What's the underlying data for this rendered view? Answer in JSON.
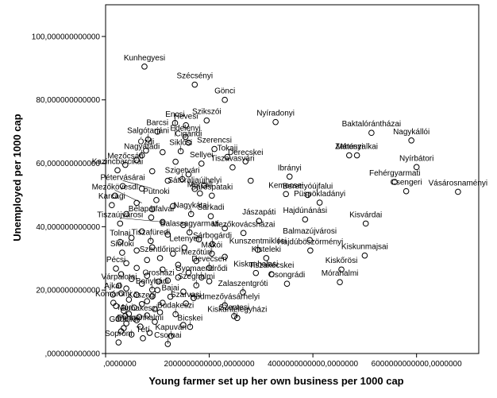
{
  "chart_data": {
    "type": "scatter",
    "xlabel": "Young farmer set up her own business per 1000 cap",
    "ylabel": "Unemployed per 1000 cap",
    "xlim": [
      0,
      7200000000000
    ],
    "ylim": [
      0,
      110000000000
    ],
    "x_ticks": [
      {
        "value": 0,
        "label": ",0000000"
      },
      {
        "value": 2000000000000,
        "label": "2000000000000,0000000"
      },
      {
        "value": 4000000000000,
        "label": "4000000000000,0000000"
      },
      {
        "value": 6000000000000,
        "label": "6000000000000,0000000"
      }
    ],
    "y_ticks": [
      {
        "value": 0,
        "label": ",000000000000"
      },
      {
        "value": 20000000000,
        "label": "20,000000000000"
      },
      {
        "value": 40000000000,
        "label": "40,000000000000"
      },
      {
        "value": 60000000000,
        "label": "60,000000000000"
      },
      {
        "value": 80000000000,
        "label": "80,000000000000"
      },
      {
        "value": 100000000000,
        "label": "100,000000000000"
      }
    ],
    "grid": false,
    "points": [
      {
        "label": "Kunhegyesi",
        "x": 750000000000,
        "y": 90500000000
      },
      {
        "label": "Szécsényi",
        "x": 1720000000000,
        "y": 84800000000
      },
      {
        "label": "Gönci",
        "x": 2300000000000,
        "y": 80000000000
      },
      {
        "label": "Salgótarjáni",
        "x": 820000000000,
        "y": 67500000000
      },
      {
        "label": "Hevesi",
        "x": 1550000000000,
        "y": 72000000000
      },
      {
        "label": "Encsi",
        "x": 1340000000000,
        "y": 72700000000
      },
      {
        "label": "Szikszói",
        "x": 1950000000000,
        "y": 73500000000
      },
      {
        "label": "Nyíradonyi",
        "x": 3280000000000,
        "y": 73000000000
      },
      {
        "label": "Baktalórántházai",
        "x": 5130000000000,
        "y": 69600000000
      },
      {
        "label": "Nagykállói",
        "x": 5900000000000,
        "y": 67200000000
      },
      {
        "label": "Barcsi",
        "x": 1000000000000,
        "y": 70000000000
      },
      {
        "label": "Edelényi",
        "x": 1540000000000,
        "y": 68300000000
      },
      {
        "label": "Ózdi",
        "x": 780000000000,
        "y": 64000000000
      },
      {
        "label": "Cigándi",
        "x": 1600000000000,
        "y": 66500000000
      },
      {
        "label": "Szerencsi",
        "x": 2100000000000,
        "y": 64500000000
      },
      {
        "label": "Nagyatádi",
        "x": 700000000000,
        "y": 62500000000
      },
      {
        "label": "Siklósi",
        "x": 1450000000000,
        "y": 63800000000
      },
      {
        "label": "Tokaji",
        "x": 2350000000000,
        "y": 62000000000
      },
      {
        "label": "Derecskei",
        "x": 2700000000000,
        "y": 60600000000
      },
      {
        "label": "Mátészalkai",
        "x": 4850000000000,
        "y": 62500000000
      },
      {
        "label": "Nyírbátori",
        "x": 6000000000000,
        "y": 58800000000
      },
      {
        "label": "Mezőcsáti",
        "x": 380000000000,
        "y": 59500000000
      },
      {
        "label": "Zahonyi",
        "x": 4700000000000,
        "y": 62500000000
      },
      {
        "label": "Kazincbarcikai",
        "x": 230000000000,
        "y": 57800000000
      },
      {
        "label": "Sellyei",
        "x": 1850000000000,
        "y": 59900000000
      },
      {
        "label": "Tiszavasvári",
        "x": 2450000000000,
        "y": 58700000000
      },
      {
        "label": "Szigetvári",
        "x": 1480000000000,
        "y": 55000000000
      },
      {
        "label": "Ibrányi",
        "x": 3550000000000,
        "y": 55800000000
      },
      {
        "label": "Fehérgyarmati",
        "x": 5580000000000,
        "y": 54100000000
      },
      {
        "label": "Vásárosnaményi",
        "x": 6800000000000,
        "y": 51000000000
      },
      {
        "label": "Pétervásárai",
        "x": 330000000000,
        "y": 52800000000
      },
      {
        "label": "Sátoraljaújhelyi",
        "x": 1720000000000,
        "y": 51900000000
      },
      {
        "label": "Sárospataki",
        "x": 2050000000000,
        "y": 49800000000
      },
      {
        "label": "Marcali",
        "x": 1820000000000,
        "y": 50500000000
      },
      {
        "label": "Kemecsei",
        "x": 3480000000000,
        "y": 50300000000
      },
      {
        "label": "Berettyóújfalui",
        "x": 3900000000000,
        "y": 50000000000
      },
      {
        "label": "Püspökladányi",
        "x": 4130000000000,
        "y": 47600000000
      },
      {
        "label": "Csengeri",
        "x": 5800000000000,
        "y": 51200000000
      },
      {
        "label": "Mezőkövesdi",
        "x": 180000000000,
        "y": 49800000000
      },
      {
        "label": "Putnoki",
        "x": 980000000000,
        "y": 48400000000
      },
      {
        "label": "Karcagi",
        "x": 120000000000,
        "y": 46800000000
      },
      {
        "label": "Nagykátai",
        "x": 1650000000000,
        "y": 44000000000
      },
      {
        "label": "Bélapátfalvai",
        "x": 880000000000,
        "y": 42900000000
      },
      {
        "label": "Sarkadi",
        "x": 2030000000000,
        "y": 43300000000
      },
      {
        "label": "Jászapáti",
        "x": 2960000000000,
        "y": 41800000000
      },
      {
        "label": "Hajdúnánási",
        "x": 3850000000000,
        "y": 42300000000
      },
      {
        "label": "Kisvárdai",
        "x": 5020000000000,
        "y": 41000000000
      },
      {
        "label": "Tiszaújvárosi",
        "x": 280000000000,
        "y": 41000000000
      },
      {
        "label": "Balassagyarmati",
        "x": 1620000000000,
        "y": 38200000000
      },
      {
        "label": "Mezőkovácsházai",
        "x": 2660000000000,
        "y": 38000000000
      },
      {
        "label": "Balmazújvárosi",
        "x": 3940000000000,
        "y": 35800000000
      },
      {
        "label": "Tiszafüredi",
        "x": 870000000000,
        "y": 35500000000
      },
      {
        "label": "Tolnai",
        "x": 280000000000,
        "y": 35200000000
      },
      {
        "label": "Sárbogárdi",
        "x": 2060000000000,
        "y": 34500000000
      },
      {
        "label": "Kunszentmiklósi",
        "x": 2940000000000,
        "y": 32700000000
      },
      {
        "label": "Hajdúböszörményi",
        "x": 3950000000000,
        "y": 32500000000
      },
      {
        "label": "Siófoki",
        "x": 320000000000,
        "y": 31800000000
      },
      {
        "label": "Letenyei",
        "x": 1520000000000,
        "y": 33400000000
      },
      {
        "label": "Makói",
        "x": 2050000000000,
        "y": 31500000000
      },
      {
        "label": "Kisteleki",
        "x": 3100000000000,
        "y": 30100000000
      },
      {
        "label": "Kiskunmajsai",
        "x": 5000000000000,
        "y": 30900000000
      },
      {
        "label": "Szentlőrinci",
        "x": 1050000000000,
        "y": 30100000000
      },
      {
        "label": "Mezőtúri",
        "x": 1750000000000,
        "y": 29200000000
      },
      {
        "label": "Pécsi",
        "x": 200000000000,
        "y": 26800000000
      },
      {
        "label": "Devecseri",
        "x": 2000000000000,
        "y": 27000000000
      },
      {
        "label": "Kiskőrösi",
        "x": 4550000000000,
        "y": 26500000000
      },
      {
        "label": "Kiskunhalasi",
        "x": 2900000000000,
        "y": 25400000000
      },
      {
        "label": "Tiszakécskei",
        "x": 3200000000000,
        "y": 25000000000
      },
      {
        "label": "Gyomaendrődi",
        "x": 1850000000000,
        "y": 24000000000
      },
      {
        "label": "Mórahalmi",
        "x": 4520000000000,
        "y": 22500000000
      },
      {
        "label": "Csongrádi",
        "x": 3500000000000,
        "y": 22000000000
      },
      {
        "label": "Orosházi",
        "x": 1020000000000,
        "y": 22700000000
      },
      {
        "label": "Várpalotai",
        "x": 260000000000,
        "y": 21400000000
      },
      {
        "label": "Szeghalmi",
        "x": 1750000000000,
        "y": 21500000000
      },
      {
        "label": "Zalaszentgróti",
        "x": 2650000000000,
        "y": 19300000000
      },
      {
        "label": "Bonyhádi",
        "x": 900000000000,
        "y": 20100000000
      },
      {
        "label": "Ajkai",
        "x": 140000000000,
        "y": 18600000000
      },
      {
        "label": "Bajai",
        "x": 1250000000000,
        "y": 17900000000
      },
      {
        "label": "Komáromi",
        "x": 150000000000,
        "y": 16000000000
      },
      {
        "label": "Szarvasi",
        "x": 1550000000000,
        "y": 15800000000
      },
      {
        "label": "Kőszegi",
        "x": 700000000000,
        "y": 15600000000
      },
      {
        "label": "Hódmezővásárhelyi",
        "x": 2300000000000,
        "y": 15200000000
      },
      {
        "label": "Budakeszi",
        "x": 1350000000000,
        "y": 12400000000
      },
      {
        "label": "Móri",
        "x": 380000000000,
        "y": 11800000000
      },
      {
        "label": "Dunakeszi",
        "x": 650000000000,
        "y": 11500000000
      },
      {
        "label": "Szentesi",
        "x": 2480000000000,
        "y": 11800000000
      },
      {
        "label": "Kiskunfélegyházi",
        "x": 2540000000000,
        "y": 11200000000
      },
      {
        "label": "Pannonhalmi",
        "x": 670000000000,
        "y": 8500000000
      },
      {
        "label": "Gödöllői",
        "x": 350000000000,
        "y": 8000000000
      },
      {
        "label": "Bicskei",
        "x": 1630000000000,
        "y": 8400000000
      },
      {
        "label": "Kapuvári",
        "x": 1260000000000,
        "y": 5500000000
      },
      {
        "label": "Tétí",
        "x": 720000000000,
        "y": 4800000000
      },
      {
        "label": "Soproni",
        "x": 250000000000,
        "y": 3500000000
      },
      {
        "label": "Csornai",
        "x": 1200000000000,
        "y": 3000000000
      }
    ],
    "extra_points": [
      [
        600000000000,
        61000000000
      ],
      [
        1100000000000,
        63500000000
      ],
      [
        1350000000000,
        60500000000
      ],
      [
        900000000000,
        57500000000
      ],
      [
        1200000000000,
        54500000000
      ],
      [
        1600000000000,
        56500000000
      ],
      [
        700000000000,
        52000000000
      ],
      [
        1900000000000,
        53000000000
      ],
      [
        2800000000000,
        54500000000
      ],
      [
        600000000000,
        47500000000
      ],
      [
        1300000000000,
        46500000000
      ],
      [
        900000000000,
        45500000000
      ],
      [
        400000000000,
        44000000000
      ],
      [
        1100000000000,
        41500000000
      ],
      [
        1500000000000,
        40500000000
      ],
      [
        2300000000000,
        39500000000
      ],
      [
        700000000000,
        38500000000
      ],
      [
        1200000000000,
        37500000000
      ],
      [
        500000000000,
        36500000000
      ],
      [
        1800000000000,
        36000000000
      ],
      [
        900000000000,
        33500000000
      ],
      [
        600000000000,
        32500000000
      ],
      [
        1300000000000,
        31500000000
      ],
      [
        2300000000000,
        30500000000
      ],
      [
        800000000000,
        29500000000
      ],
      [
        400000000000,
        28500000000
      ],
      [
        1400000000000,
        28000000000
      ],
      [
        600000000000,
        27000000000
      ],
      [
        1100000000000,
        26500000000
      ],
      [
        1600000000000,
        25500000000
      ],
      [
        300000000000,
        25000000000
      ],
      [
        800000000000,
        24500000000
      ],
      [
        1400000000000,
        24000000000
      ],
      [
        500000000000,
        23500000000
      ],
      [
        1200000000000,
        23000000000
      ],
      [
        2000000000000,
        22800000000
      ],
      [
        700000000000,
        22000000000
      ],
      [
        400000000000,
        20500000000
      ],
      [
        1000000000000,
        20000000000
      ],
      [
        1500000000000,
        19500000000
      ],
      [
        300000000000,
        19000000000
      ],
      [
        600000000000,
        18500000000
      ],
      [
        900000000000,
        18000000000
      ],
      [
        1700000000000,
        17500000000
      ],
      [
        450000000000,
        17000000000
      ],
      [
        800000000000,
        16500000000
      ],
      [
        1100000000000,
        16000000000
      ],
      [
        200000000000,
        15000000000
      ],
      [
        550000000000,
        14500000000
      ],
      [
        950000000000,
        14000000000
      ],
      [
        350000000000,
        13500000000
      ],
      [
        1050000000000,
        13000000000
      ],
      [
        450000000000,
        12500000000
      ],
      [
        800000000000,
        12000000000
      ],
      [
        250000000000,
        11000000000
      ],
      [
        600000000000,
        10500000000
      ],
      [
        950000000000,
        10000000000
      ],
      [
        400000000000,
        9500000000
      ],
      [
        1500000000000,
        9000000000
      ],
      [
        300000000000,
        7000000000
      ],
      [
        850000000000,
        6500000000
      ],
      [
        500000000000,
        6000000000
      ]
    ],
    "connectors": [
      {
        "label": "Salgótarjáni",
        "to_x": 820000000000,
        "to_y": 67500000000
      },
      {
        "label": "Encsi",
        "to_x": 1340000000000,
        "to_y": 68500000000
      },
      {
        "label": "Nagyatádi",
        "to_x": 700000000000,
        "to_y": 62500000000
      },
      {
        "label": "Siklósi",
        "to_x": 1450000000000,
        "to_y": 63800000000
      },
      {
        "label": "Szigetvári",
        "to_x": 1480000000000,
        "to_y": 55000000000
      },
      {
        "label": "Pétervásárai",
        "to_x": 900000000000,
        "to_y": 52000000000
      },
      {
        "label": "Mezőkövesdi",
        "to_x": 700000000000,
        "to_y": 47500000000
      },
      {
        "label": "Nagykátai",
        "to_x": 1650000000000,
        "to_y": 44000000000
      },
      {
        "label": "Tiszaújvárosi",
        "to_x": 1100000000000,
        "to_y": 41500000000
      },
      {
        "label": "Balassagyarmati",
        "to_x": 1620000000000,
        "to_y": 38200000000
      },
      {
        "label": "Tiszafüredi",
        "to_x": 870000000000,
        "to_y": 35500000000
      },
      {
        "label": "Sárbogárdi",
        "to_x": 2060000000000,
        "to_y": 34500000000
      },
      {
        "label": "Kunszentmiklósi",
        "to_x": 2940000000000,
        "to_y": 32700000000
      },
      {
        "label": "Makói",
        "to_x": 2050000000000,
        "to_y": 31500000000
      },
      {
        "label": "Mezőtúri",
        "to_x": 1750000000000,
        "to_y": 29200000000
      },
      {
        "label": "Devecseri",
        "to_x": 2000000000000,
        "to_y": 27000000000
      },
      {
        "label": "Gyomaendrődi",
        "to_x": 1850000000000,
        "to_y": 24000000000
      },
      {
        "label": "Szeghalmi",
        "to_x": 1750000000000,
        "to_y": 21500000000
      },
      {
        "label": "Bonyhádi",
        "to_x": 900000000000,
        "to_y": 20100000000
      },
      {
        "label": "Zalaszentgróti",
        "to_x": 2650000000000,
        "to_y": 19300000000
      },
      {
        "label": "Hódmezővásárhelyi",
        "to_x": 2300000000000,
        "to_y": 15200000000
      },
      {
        "label": "Szentesi",
        "to_x": 2480000000000,
        "to_y": 11800000000
      },
      {
        "label": "Kiskunfélegyházi",
        "to_x": 2540000000000,
        "to_y": 11200000000
      },
      {
        "label": "Budakeszi",
        "to_x": 1350000000000,
        "to_y": 12400000000
      },
      {
        "label": "Bicskei",
        "to_x": 1630000000000,
        "to_y": 8400000000
      },
      {
        "label": "Kapuvári",
        "to_x": 1260000000000,
        "to_y": 5500000000
      },
      {
        "label": "Csornai",
        "to_x": 1200000000000,
        "to_y": 3000000000
      }
    ]
  }
}
